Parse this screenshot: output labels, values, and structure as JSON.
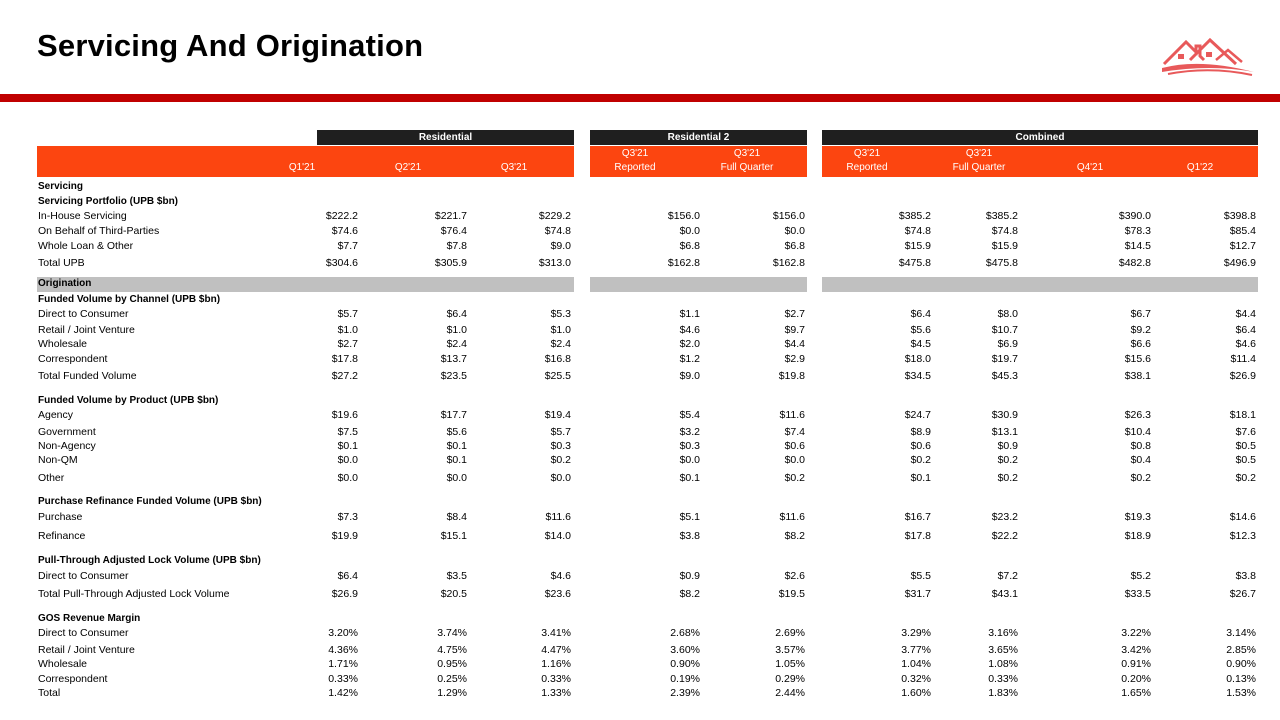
{
  "title": "Servicing And Origination",
  "groups": [
    "Residential",
    "Residential  2",
    "Combined"
  ],
  "col_headers": [
    {
      "l1": "",
      "l2": "Q1'21"
    },
    {
      "l1": "",
      "l2": "Q2'21"
    },
    {
      "l1": "",
      "l2": "Q3'21"
    },
    {
      "l1": "Q3'21",
      "l2": "Reported"
    },
    {
      "l1": "Q3'21",
      "l2": "Full Quarter"
    },
    {
      "l1": "Q3'21",
      "l2": "Reported"
    },
    {
      "l1": "Q3'21",
      "l2": "Full Quarter"
    },
    {
      "l1": "",
      "l2": "Q4'21"
    },
    {
      "l1": "",
      "l2": "Q1'22"
    }
  ],
  "rows": [
    {
      "label": "Servicing",
      "bold": true,
      "values": []
    },
    {
      "label": "Servicing Portfolio  (UPB $bn)",
      "bold": true,
      "values": []
    },
    {
      "label": "In-House Servicing",
      "values": [
        "$222.2",
        "$221.7",
        "$229.2",
        "$156.0",
        "$156.0",
        "$385.2",
        "$385.2",
        "$390.0",
        "$398.8"
      ]
    },
    {
      "label": "On Behalf of Third-Parties",
      "values": [
        "$74.6",
        "$76.4",
        "$74.8",
        "$0.0",
        "$0.0",
        "$74.8",
        "$74.8",
        "$78.3",
        "$85.4"
      ]
    },
    {
      "label": "Whole Loan & Other",
      "values": [
        "$7.7",
        "$7.8",
        "$9.0",
        "$6.8",
        "$6.8",
        "$15.9",
        "$15.9",
        "$14.5",
        "$12.7"
      ]
    },
    {
      "label": "Total UPB",
      "values": [
        "$304.6",
        "$305.9",
        "$313.0",
        "$162.8",
        "$162.8",
        "$475.8",
        "$475.8",
        "$482.8",
        "$496.9"
      ]
    },
    {
      "label": "Origination",
      "bold": true,
      "section": true,
      "values": []
    },
    {
      "label": "Funded Volume by Channel  (UPB $bn)",
      "bold": true,
      "values": []
    },
    {
      "label": "Direct to Consumer",
      "values": [
        "$5.7",
        "$6.4",
        "$5.3",
        "$1.1",
        "$2.7",
        "$6.4",
        "$8.0",
        "$6.7",
        "$4.4"
      ]
    },
    {
      "label": "Retail / Joint Venture",
      "values": [
        "$1.0",
        "$1.0",
        "$1.0",
        "$4.6",
        "$9.7",
        "$5.6",
        "$10.7",
        "$9.2",
        "$6.4"
      ]
    },
    {
      "label": "Wholesale",
      "values": [
        "$2.7",
        "$2.4",
        "$2.4",
        "$2.0",
        "$4.4",
        "$4.5",
        "$6.9",
        "$6.6",
        "$4.6"
      ]
    },
    {
      "label": "Correspondent",
      "values": [
        "$17.8",
        "$13.7",
        "$16.8",
        "$1.2",
        "$2.9",
        "$18.0",
        "$19.7",
        "$15.6",
        "$11.4"
      ]
    },
    {
      "label": "Total Funded Volume",
      "values": [
        "$27.2",
        "$23.5",
        "$25.5",
        "$9.0",
        "$19.8",
        "$34.5",
        "$45.3",
        "$38.1",
        "$26.9"
      ]
    },
    {
      "label": "Funded  Volume  by Product  (UPB $bn)",
      "bold": true,
      "values": []
    },
    {
      "label": "Agency",
      "values": [
        "$19.6",
        "$17.7",
        "$19.4",
        "$5.4",
        "$11.6",
        "$24.7",
        "$30.9",
        "$26.3",
        "$18.1"
      ]
    },
    {
      "label": "Government",
      "values": [
        "$7.5",
        "$5.6",
        "$5.7",
        "$3.2",
        "$7.4",
        "$8.9",
        "$13.1",
        "$10.4",
        "$7.6"
      ]
    },
    {
      "label": "Non-Agency",
      "values": [
        "$0.1",
        "$0.1",
        "$0.3",
        "$0.3",
        "$0.6",
        "$0.6",
        "$0.9",
        "$0.8",
        "$0.5"
      ]
    },
    {
      "label": "Non-QM",
      "values": [
        "$0.0",
        "$0.1",
        "$0.2",
        "$0.0",
        "$0.0",
        "$0.2",
        "$0.2",
        "$0.4",
        "$0.5"
      ]
    },
    {
      "label": "Other",
      "values": [
        "$0.0",
        "$0.0",
        "$0.0",
        "$0.1",
        "$0.2",
        "$0.1",
        "$0.2",
        "$0.2",
        "$0.2"
      ]
    },
    {
      "label": "Purchase  Refinance  Funded  Volume  (UPB $bn)",
      "bold": true,
      "values": []
    },
    {
      "label": "Purchase",
      "values": [
        "$7.3",
        "$8.4",
        "$11.6",
        "$5.1",
        "$11.6",
        "$16.7",
        "$23.2",
        "$19.3",
        "$14.6"
      ]
    },
    {
      "label": "Refinance",
      "values": [
        "$19.9",
        "$15.1",
        "$14.0",
        "$3.8",
        "$8.2",
        "$17.8",
        "$22.2",
        "$18.9",
        "$12.3"
      ]
    },
    {
      "label": "Pull-Through  Adjusted  Lock  Volume  (UPB $bn)",
      "bold": true,
      "values": []
    },
    {
      "label": "Direct to Consumer",
      "values": [
        "$6.4",
        "$3.5",
        "$4.6",
        "$0.9",
        "$2.6",
        "$5.5",
        "$7.2",
        "$5.2",
        "$3.8"
      ]
    },
    {
      "label": "Total Pull-Through Adjusted Lock Volume",
      "values": [
        "$26.9",
        "$20.5",
        "$23.6",
        "$8.2",
        "$19.5",
        "$31.7",
        "$43.1",
        "$33.5",
        "$26.7"
      ]
    },
    {
      "label": "GOS Revenue Margin",
      "bold": true,
      "values": []
    },
    {
      "label": "Direct to Consumer",
      "values": [
        "3.20%",
        "3.74%",
        "3.41%",
        "2.68%",
        "2.69%",
        "3.29%",
        "3.16%",
        "3.22%",
        "3.14%"
      ]
    },
    {
      "label": "Retail / Joint Venture",
      "values": [
        "4.36%",
        "4.75%",
        "4.47%",
        "3.60%",
        "3.57%",
        "3.77%",
        "3.65%",
        "3.42%",
        "2.85%"
      ]
    },
    {
      "label": "Wholesale",
      "values": [
        "1.71%",
        "0.95%",
        "1.16%",
        "0.90%",
        "1.05%",
        "1.04%",
        "1.08%",
        "0.91%",
        "0.90%"
      ]
    },
    {
      "label": "Correspondent",
      "values": [
        "0.33%",
        "0.25%",
        "0.33%",
        "0.19%",
        "0.29%",
        "0.32%",
        "0.33%",
        "0.20%",
        "0.13%"
      ]
    },
    {
      "label": "Total",
      "values": [
        "1.42%",
        "1.29%",
        "1.33%",
        "2.39%",
        "2.44%",
        "1.60%",
        "1.83%",
        "1.65%",
        "1.53%"
      ]
    }
  ]
}
